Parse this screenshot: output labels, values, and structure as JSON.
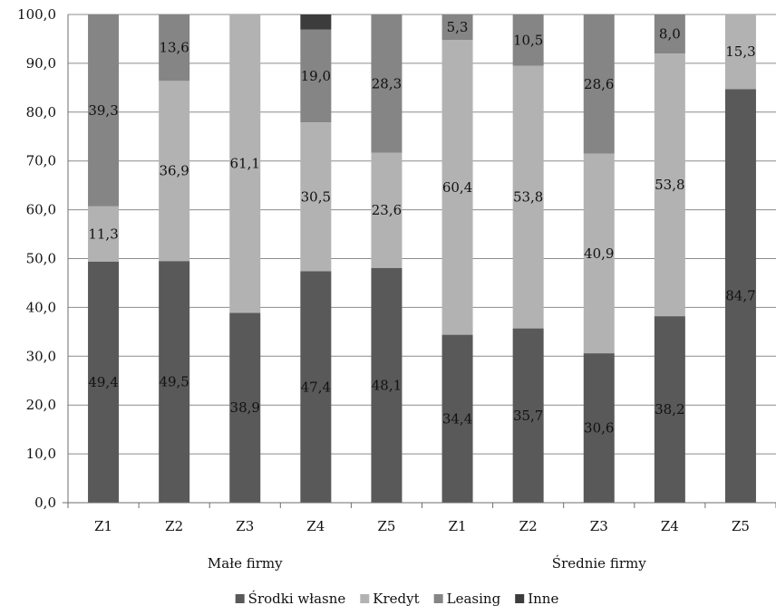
{
  "chart_data": {
    "type": "bar",
    "stacked": true,
    "categories": [
      "Z1",
      "Z2",
      "Z3",
      "Z4",
      "Z5",
      "Z1",
      "Z2",
      "Z3",
      "Z4",
      "Z5"
    ],
    "groups": [
      {
        "label": "Małe firmy",
        "start": 0,
        "end": 4
      },
      {
        "label": "Średnie firmy",
        "start": 5,
        "end": 9
      }
    ],
    "series": [
      {
        "name": "Środki własne",
        "color": "#595959",
        "values": [
          49.4,
          49.5,
          38.9,
          47.4,
          48.1,
          34.4,
          35.7,
          30.6,
          38.2,
          84.7
        ],
        "labels": [
          "49,4",
          "49,5",
          "38,9",
          "47,4",
          "48,1",
          "34,4",
          "35,7",
          "30,6",
          "38,2",
          "84,7"
        ]
      },
      {
        "name": "Kredyt",
        "color": "#b2b2b2",
        "values": [
          11.3,
          36.9,
          61.1,
          30.5,
          23.6,
          60.4,
          53.8,
          40.9,
          53.8,
          15.3
        ],
        "labels": [
          "11,3",
          "36,9",
          "61,1",
          "30,5",
          "23,6",
          "60,4",
          "53,8",
          "40,9",
          "53,8",
          "15,3"
        ]
      },
      {
        "name": "Leasing",
        "color": "#858585",
        "values": [
          39.3,
          13.6,
          0,
          19.0,
          28.3,
          5.3,
          10.5,
          28.6,
          8.0,
          0
        ],
        "labels": [
          "39,3",
          "13,6",
          "",
          "19,0",
          "28,3",
          "5,3",
          "10,5",
          "28,6",
          "8,0",
          ""
        ]
      },
      {
        "name": "Inne",
        "color": "#3c3c3c",
        "values": [
          0,
          0,
          0,
          3.2,
          0,
          0,
          0,
          0,
          0,
          0
        ],
        "labels": [
          "",
          "",
          "",
          "",
          "",
          "",
          "",
          "",
          "",
          ""
        ]
      }
    ],
    "yticks": [
      "0,0",
      "10,0",
      "20,0",
      "30,0",
      "40,0",
      "50,0",
      "60,0",
      "70,0",
      "80,0",
      "90,0",
      "100,0"
    ],
    "ylim": [
      0,
      100
    ],
    "grid": true,
    "legend": "bottom"
  }
}
